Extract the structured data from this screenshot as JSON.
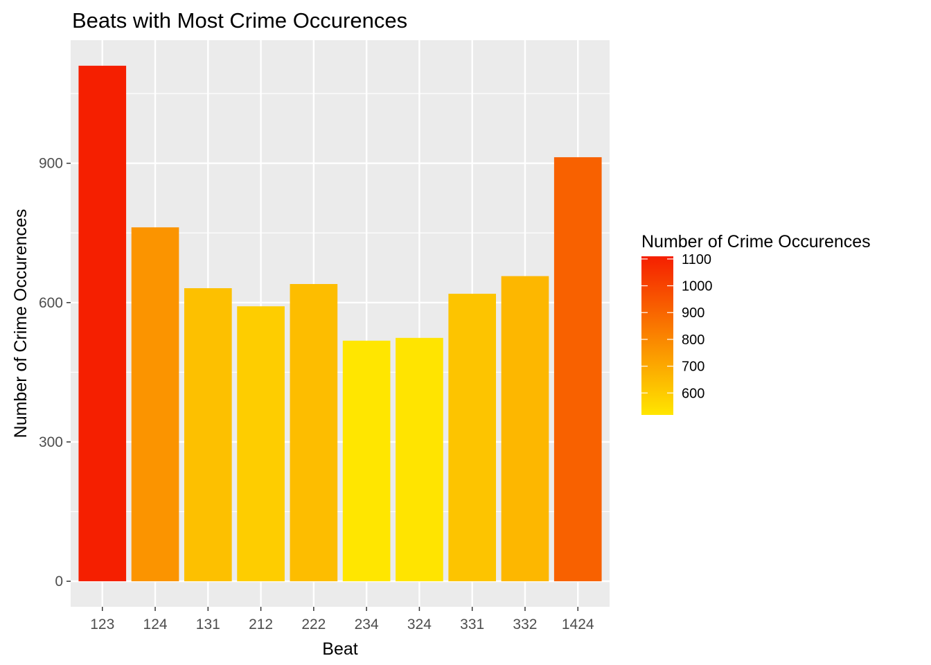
{
  "chart_data": {
    "type": "bar",
    "title": "Beats with Most Crime Occurences",
    "xlabel": "Beat",
    "ylabel": "Number of Crime Occurences",
    "categories": [
      "123",
      "124",
      "131",
      "212",
      "222",
      "234",
      "324",
      "331",
      "332",
      "1424"
    ],
    "values": [
      1110,
      762,
      631,
      592,
      640,
      518,
      524,
      619,
      657,
      913
    ],
    "ylim": [
      -55,
      1165
    ],
    "yticks": [
      0,
      300,
      600,
      900
    ],
    "grid": true,
    "legend": {
      "title": "Number of Crime Occurences",
      "placement": "right",
      "type": "colorbar",
      "range": [
        518,
        1110
      ],
      "ticks": [
        600,
        700,
        800,
        900,
        1000,
        1100
      ],
      "color_low": "#FFE600",
      "color_high": "#F51F00"
    }
  }
}
